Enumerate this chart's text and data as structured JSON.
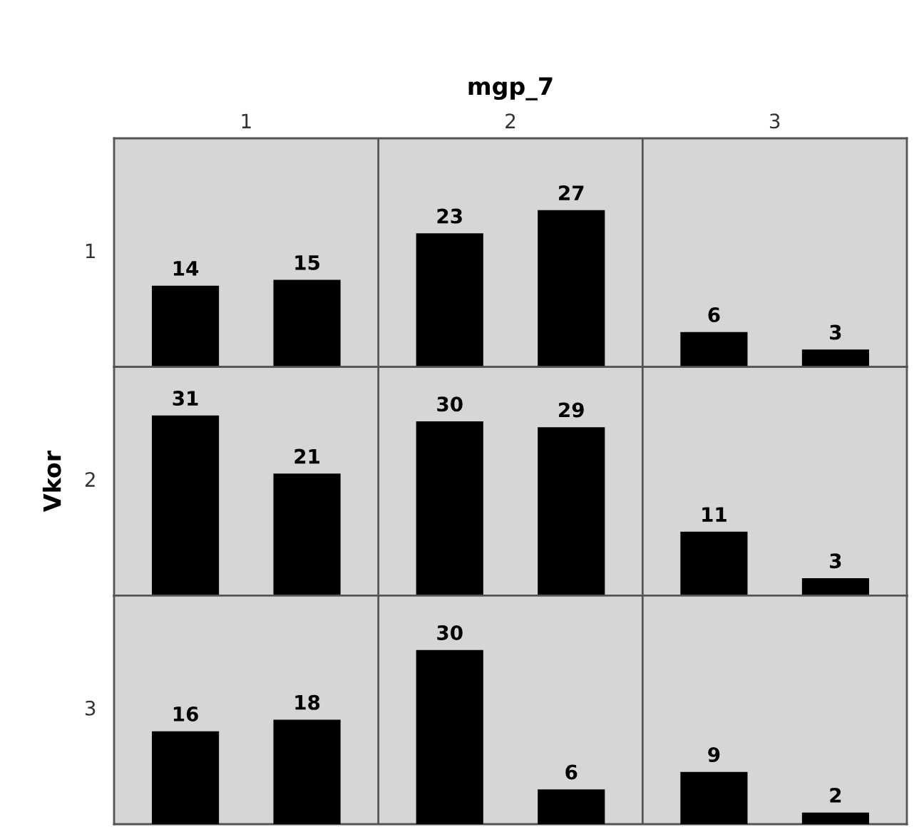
{
  "chart_data": [
    {
      "type": "bar",
      "title": "mgp_7",
      "ylabel": "1",
      "categories": [
        "1",
        "2",
        "3"
      ],
      "tick_labels": "x",
      "data_labels": true,
      "series": [
        {
          "color": "#000000",
          "values": [
            14,
            23,
            6
          ]
        },
        {
          "color": "#000000",
          "values": [
            15,
            27,
            3
          ]
        }
      ]
    },
    {
      "type": "bar",
      "ylabel": "2",
      "annotations": [
        "Vkor"
      ],
      "categories": [
        "1",
        "2",
        "3"
      ],
      "tick_labels": false,
      "data_labels": true,
      "series": [
        {
          "color": "#000000",
          "values": [
            31,
            30,
            11
          ]
        },
        {
          "color": "#000000",
          "values": [
            21,
            29,
            3
          ]
        }
      ]
    },
    {
      "type": "bar",
      "ylabel": "3",
      "categories": [
        "1",
        "2",
        "3"
      ],
      "tick_labels": false,
      "data_labels": true,
      "series": [
        {
          "color": "#000000",
          "values": [
            16,
            30,
            9
          ]
        },
        {
          "color": "#000000",
          "values": [
            18,
            6,
            2
          ]
        }
      ]
    }
  ]
}
